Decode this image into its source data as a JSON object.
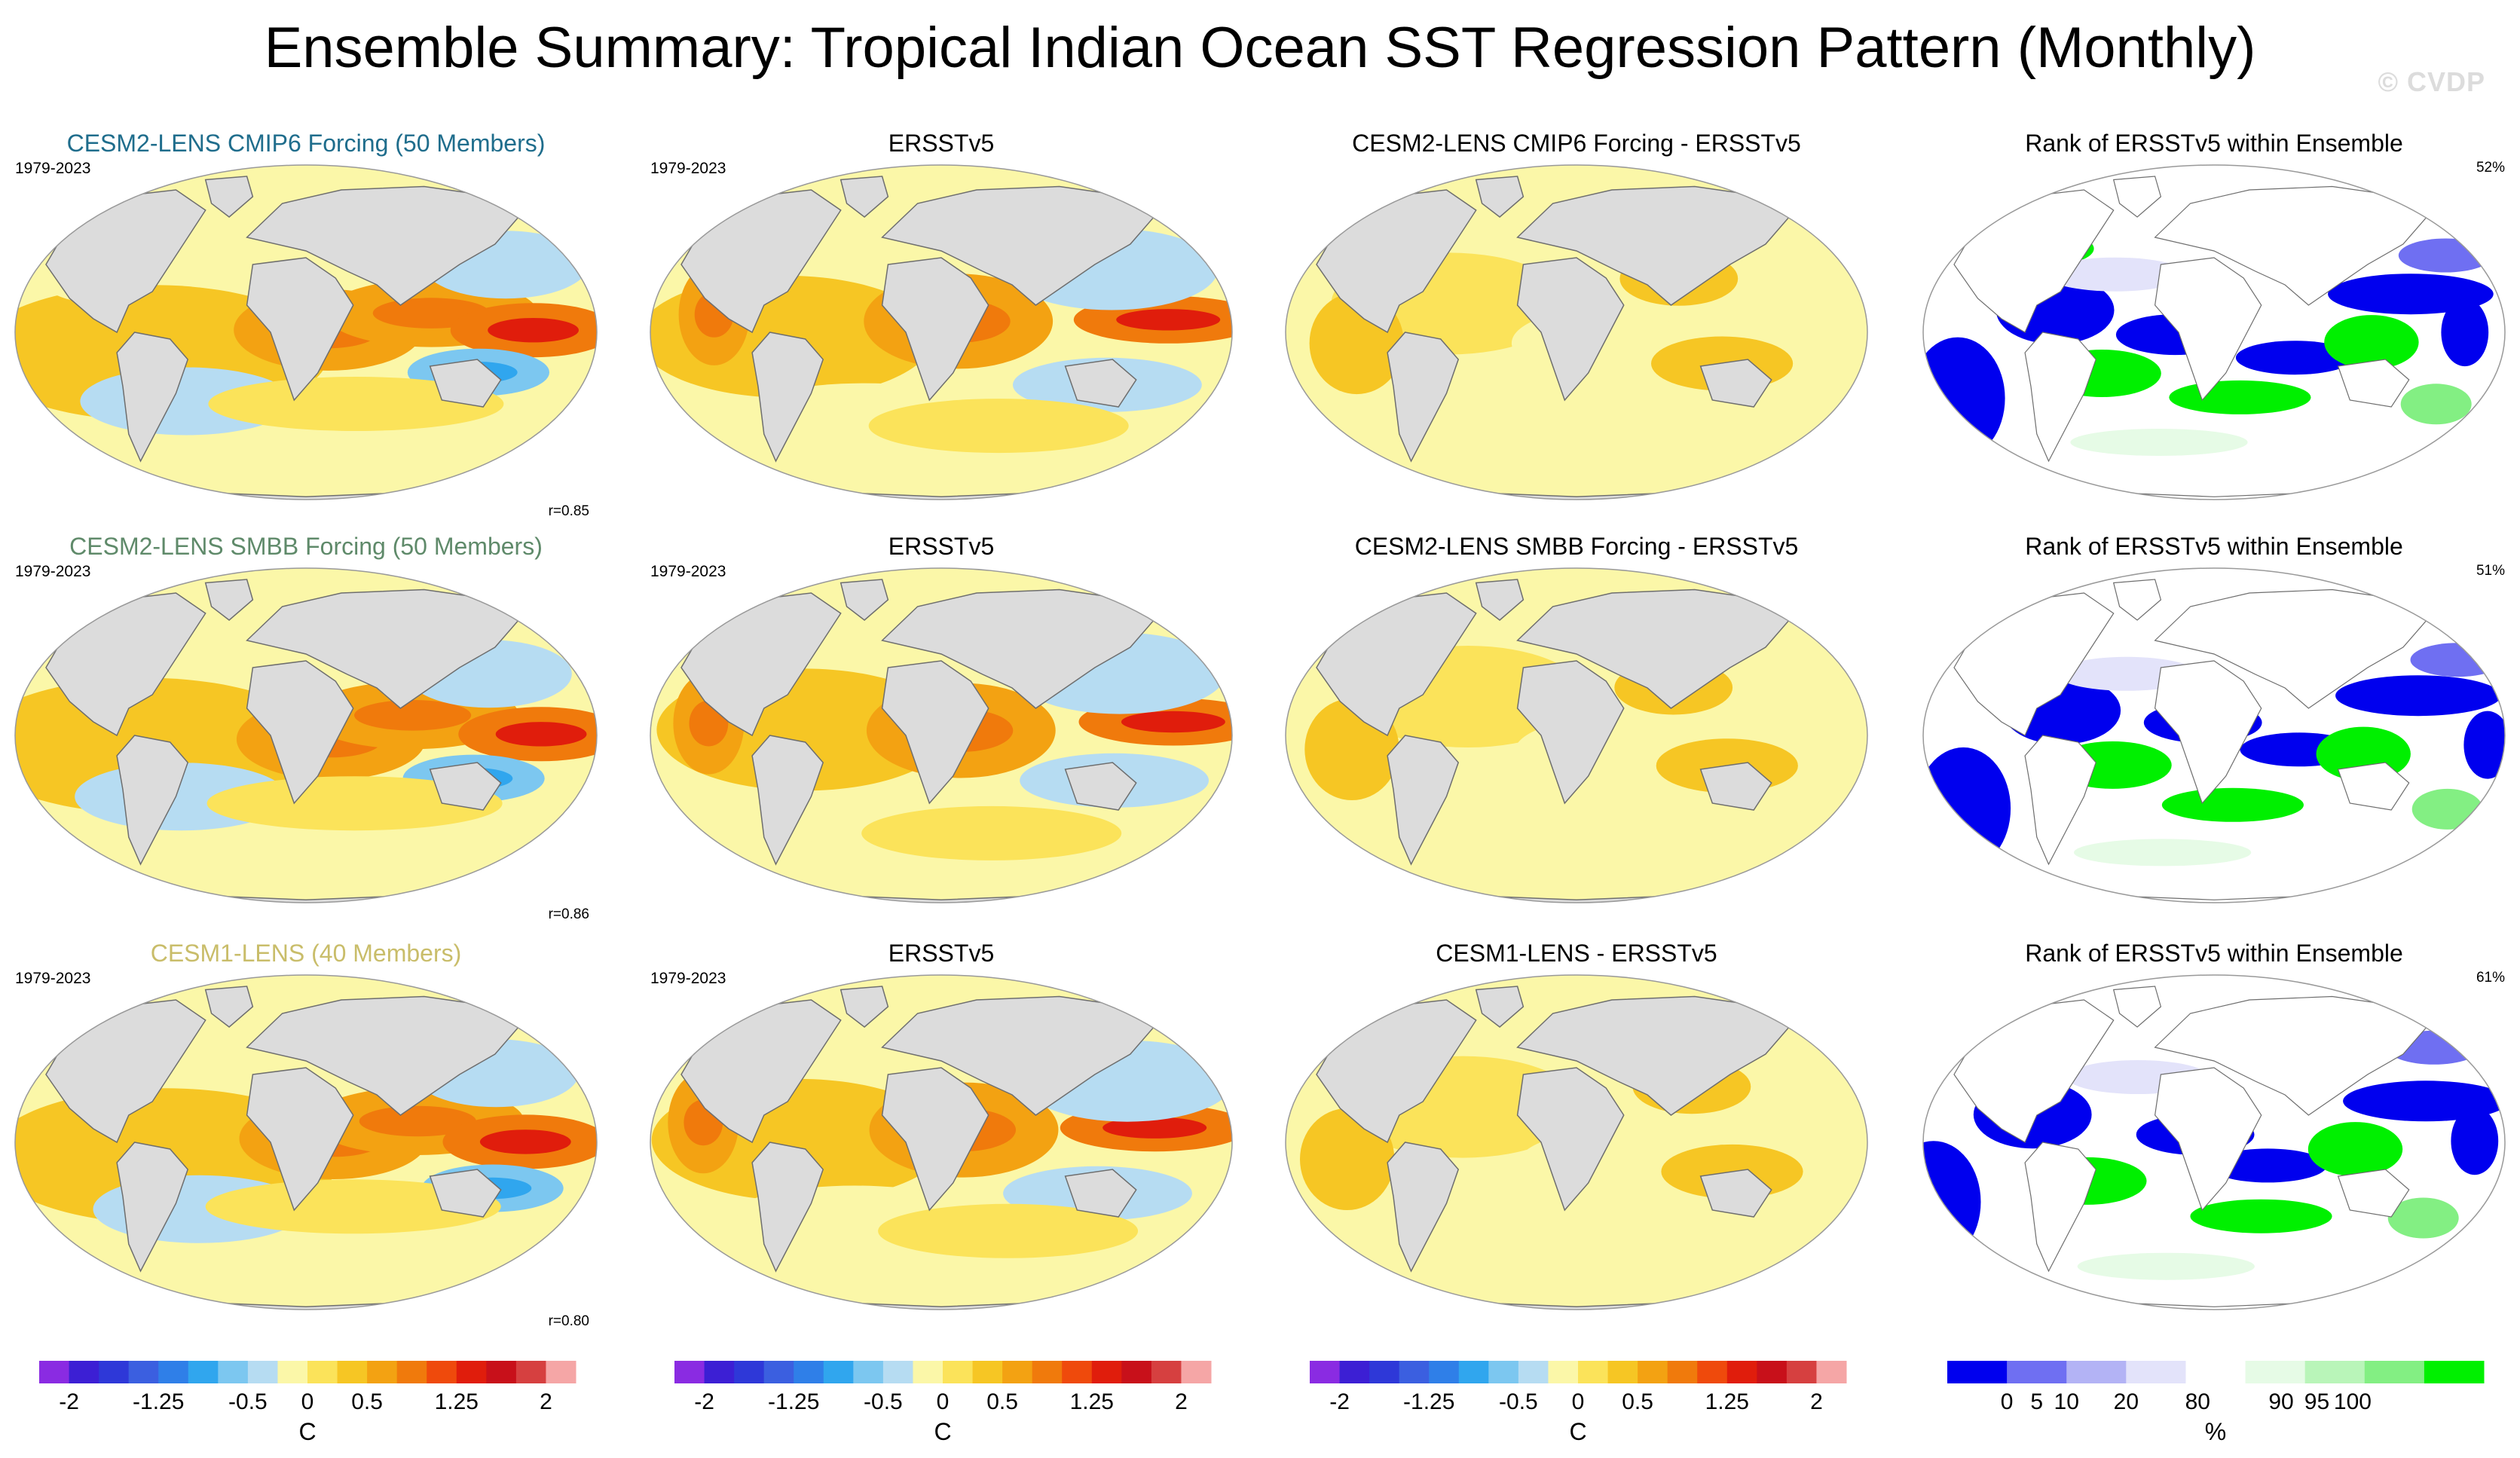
{
  "title": "Ensemble Summary: Tropical Indian Ocean SST Regression Pattern (Monthly)",
  "watermark": "© CVDP",
  "colors": {
    "title_cmip6": "#1f6d8c",
    "title_smbb": "#5f8a6a",
    "title_cesm1": "#c9bd6a",
    "land": "#dcdcdc",
    "coast": "#6e6e6e",
    "ocean_neutral": "#ffffff",
    "sst_scale": [
      "#8a2be2",
      "#3c1fd4",
      "#2e38d8",
      "#3b5fe0",
      "#2f7fe8",
      "#30a6ee",
      "#7cc7f0",
      "#b6dcf2",
      "#fbf7a8",
      "#fbe35a",
      "#f6c624",
      "#f3a212",
      "#f07a0c",
      "#ef4a0c",
      "#e01d0c",
      "#c8101a",
      "#d64040",
      "#f5a6a6"
    ],
    "rank_scale": [
      "#0000ee",
      "#6f6ff2",
      "#b3b3f5",
      "#e3e3fa",
      "#ffffff",
      "#e6fbe6",
      "#b9f5b9",
      "#83ef83",
      "#00f000"
    ]
  },
  "chart_data": {
    "type": "heatmap",
    "rows": [
      {
        "model_title": "CESM2-LENS CMIP6 Forcing (50 Members)",
        "model_color": "title_cmip6",
        "period": "1979-2023",
        "pattern_correlation": "r=0.85",
        "obs_title": "ERSSTv5",
        "obs_period": "1979-2023",
        "diff_title": "CESM2-LENS CMIP6 Forcing - ERSSTv5",
        "rank_title": "Rank of ERSSTv5 within Ensemble",
        "rank_pct": "52%"
      },
      {
        "model_title": "CESM2-LENS SMBB Forcing (50 Members)",
        "model_color": "title_smbb",
        "period": "1979-2023",
        "pattern_correlation": "r=0.86",
        "obs_title": "ERSSTv5",
        "obs_period": "1979-2023",
        "diff_title": "CESM2-LENS SMBB Forcing - ERSSTv5",
        "rank_title": "Rank of ERSSTv5 within Ensemble",
        "rank_pct": "51%"
      },
      {
        "model_title": "CESM1-LENS (40 Members)",
        "model_color": "title_cesm1",
        "period": "1979-2023",
        "pattern_correlation": "r=0.80",
        "obs_title": "ERSSTv5",
        "obs_period": "1979-2023",
        "diff_title": "CESM1-LENS - ERSSTv5",
        "rank_title": "Rank of ERSSTv5 within Ensemble",
        "rank_pct": "61%"
      }
    ],
    "sst_colorbar": {
      "min": -2,
      "max": 2,
      "tick_labels": [
        "-2",
        "-1.25",
        "-0.5",
        "0",
        "0.5",
        "1.25",
        "2"
      ],
      "tick_values": [
        -2,
        -1.25,
        -0.5,
        0,
        0.5,
        1.25,
        2
      ],
      "units": "C"
    },
    "rank_colorbar": {
      "tick_labels": [
        "0",
        "5",
        "10",
        "20",
        "80",
        "90",
        "95",
        "100"
      ],
      "units": "%"
    }
  }
}
